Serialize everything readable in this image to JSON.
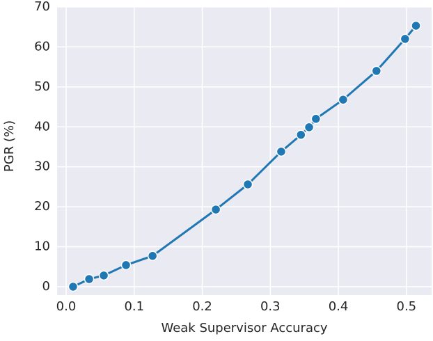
{
  "chart_data": {
    "type": "line",
    "xlabel": "Weak Supervisor Accuracy",
    "ylabel": "PGR (%)",
    "x": [
      0.0102,
      0.0338,
      0.0553,
      0.088,
      0.127,
      0.22,
      0.267,
      0.316,
      0.345,
      0.357,
      0.367,
      0.407,
      0.456,
      0.498,
      0.514
    ],
    "series": [
      {
        "color": "#1f77b4",
        "values": [
          0,
          1.9,
          2.8,
          5.4,
          7.7,
          19.3,
          25.6,
          33.8,
          38.0,
          39.9,
          42.0,
          46.8,
          54.0,
          62.0,
          65.3
        ]
      }
    ],
    "xlim": [
      -0.0133,
      0.537
    ],
    "ylim": [
      -2.1,
      70
    ],
    "xticks": [
      {
        "value": 0,
        "label": "0.0"
      },
      0.1,
      0.2,
      0.3,
      0.4,
      0.5
    ],
    "yticks": [
      0,
      10,
      20,
      30,
      40,
      50,
      60,
      70
    ],
    "grid": true
  }
}
